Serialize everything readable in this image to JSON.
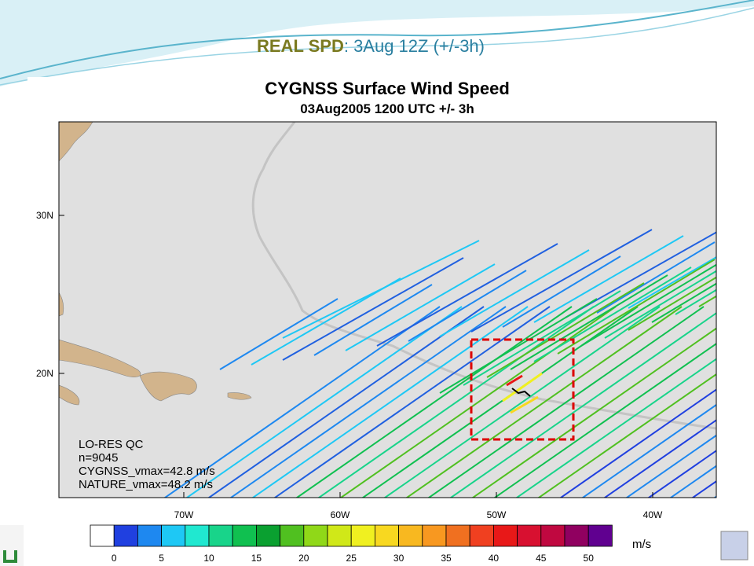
{
  "slide": {
    "title_bold": "REAL SPD",
    "title_rest": ": 3Aug 12Z (+/-3h)"
  },
  "plot": {
    "title": "CYGNSS Surface Wind Speed",
    "subtitle": "03Aug2005 1200 UTC +/- 3h",
    "lat_labels": [
      "30N",
      "20N"
    ],
    "lon_labels": [
      "70W",
      "60W",
      "50W",
      "40W"
    ],
    "annotation": [
      "LO-RES QC",
      "n=9045",
      "CYGNSS_vmax=42.8 m/s",
      "NATURE_vmax=48.2 m/s"
    ]
  },
  "colorbar": {
    "colors": [
      "#ffffff",
      "#2040e0",
      "#1e88f0",
      "#1ec8f5",
      "#20e8d0",
      "#18d48a",
      "#10c050",
      "#0aa030",
      "#50c020",
      "#90d818",
      "#d0e818",
      "#f0f020",
      "#f8d820",
      "#f8b820",
      "#f89820",
      "#f07020",
      "#f04020",
      "#e81818",
      "#d81030",
      "#c00840",
      "#900060",
      "#600090"
    ],
    "labels": [
      0,
      5,
      10,
      15,
      20,
      25,
      30,
      35,
      40,
      45,
      50
    ],
    "units": "m/s"
  }
}
